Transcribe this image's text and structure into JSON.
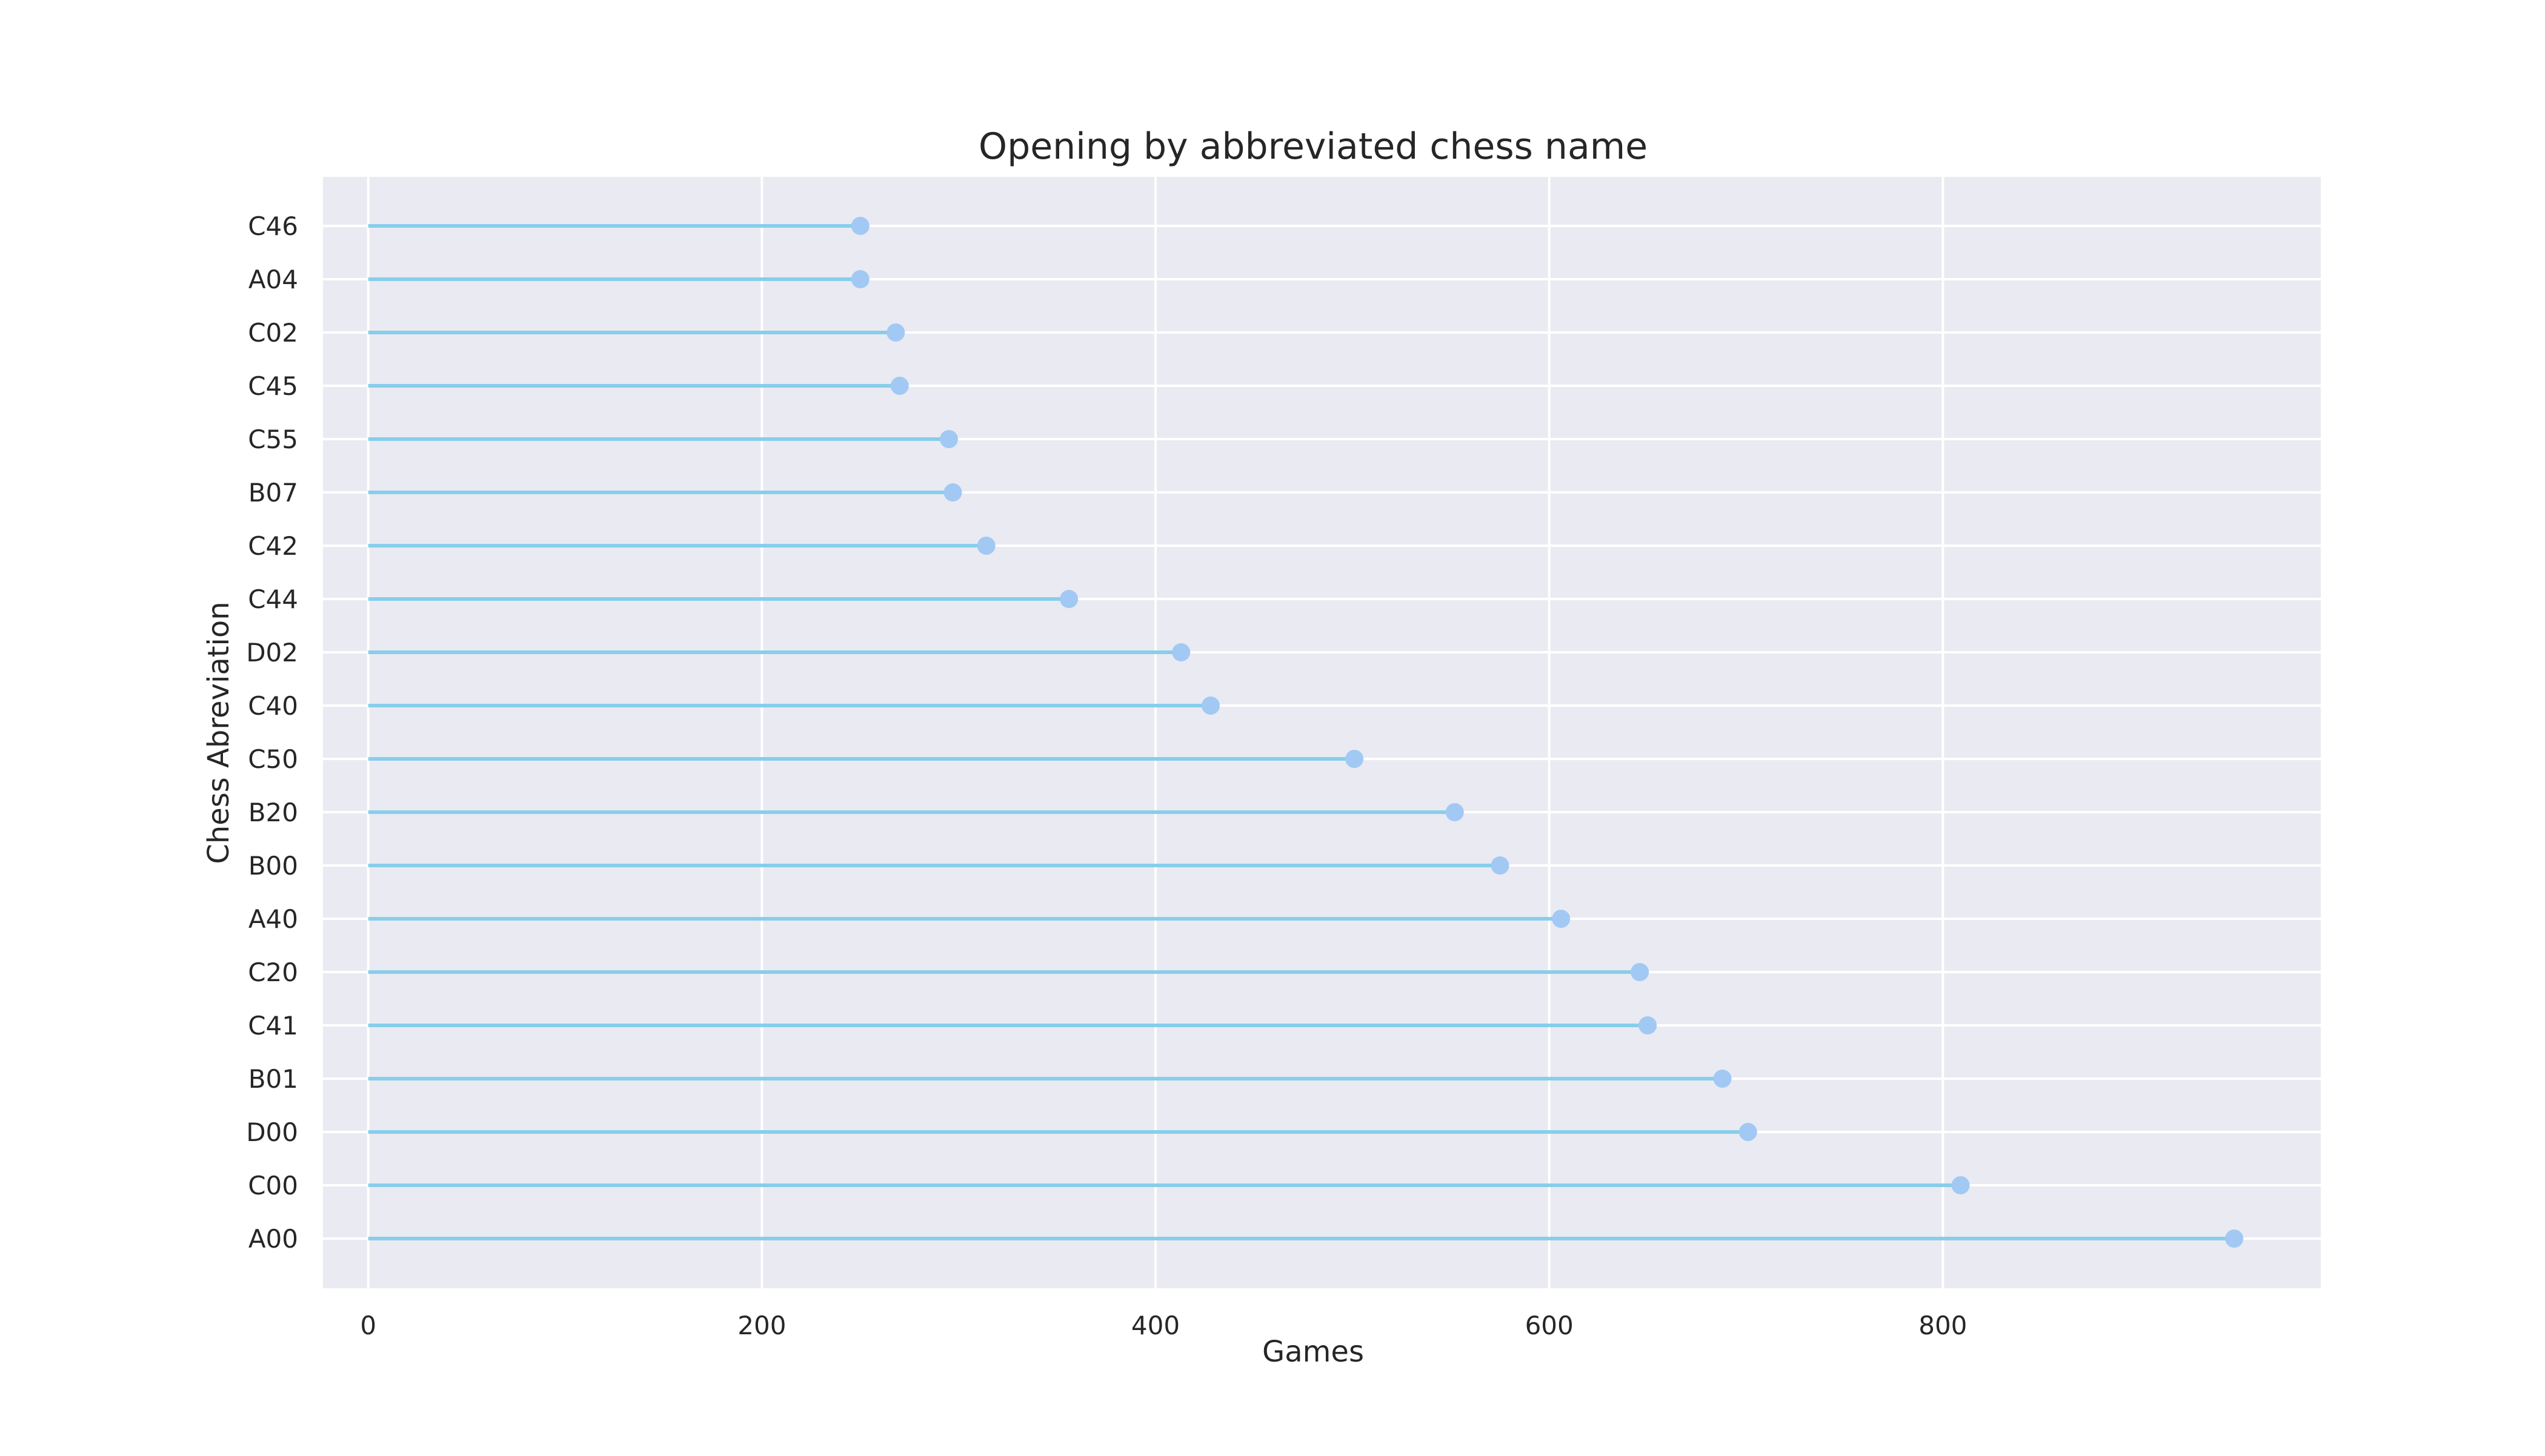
{
  "chart_data": {
    "type": "lollipop",
    "orientation": "horizontal",
    "title": "Opening by abbreviated chess name",
    "xlabel": "Games",
    "ylabel": "Chess Abreviation",
    "xlim": [
      -23,
      992
    ],
    "xticks": [
      0,
      200,
      400,
      600,
      800
    ],
    "categories": [
      "C46",
      "A04",
      "C02",
      "C45",
      "C55",
      "B07",
      "C42",
      "C44",
      "D02",
      "C40",
      "C50",
      "B20",
      "B00",
      "A40",
      "C20",
      "C41",
      "B01",
      "D00",
      "C00",
      "A00"
    ],
    "values": [
      250,
      250,
      268,
      270,
      295,
      297,
      314,
      356,
      413,
      428,
      501,
      552,
      575,
      606,
      646,
      650,
      688,
      701,
      809,
      948
    ],
    "grid": true,
    "legend": "none",
    "colors": {
      "background": "#eaeaf2",
      "grid": "#ffffff",
      "stem": "#87ceeb",
      "marker": "#a1c9f4",
      "text": "#262626"
    }
  }
}
